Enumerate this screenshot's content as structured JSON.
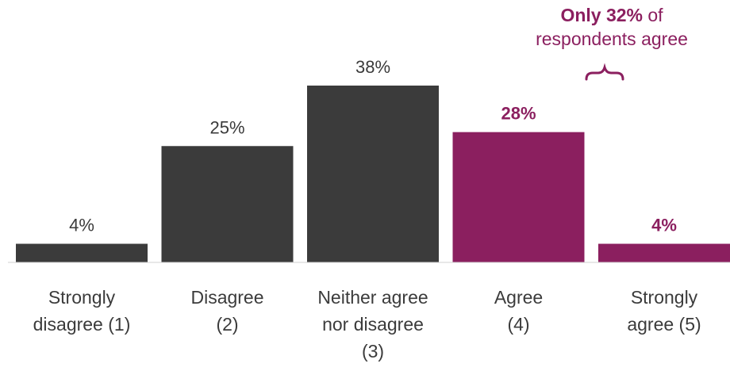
{
  "chart_data": {
    "type": "bar",
    "categories": [
      "Strongly disagree (1)",
      "Disagree (2)",
      "Neither agree nor disagree (3)",
      "Agree (4)",
      "Strongly agree (5)"
    ],
    "category_lines": [
      [
        "Strongly",
        "disagree (1)"
      ],
      [
        "Disagree",
        "(2)"
      ],
      [
        "Neither agree",
        "nor disagree",
        "(3)"
      ],
      [
        "Agree",
        "(4)"
      ],
      [
        "Strongly",
        "agree (5)"
      ]
    ],
    "values": [
      4,
      25,
      38,
      28,
      4
    ],
    "data_labels": [
      "4%",
      "25%",
      "38%",
      "28%",
      "4%"
    ],
    "highlighted": [
      false,
      false,
      false,
      true,
      true
    ],
    "colors": {
      "base": "#3b3b3b",
      "highlight": "#8b1f5f"
    },
    "annotation": {
      "bold": "Only 32%",
      "text": " of",
      "line2": "respondents agree"
    },
    "ylim": [
      0,
      45
    ]
  }
}
